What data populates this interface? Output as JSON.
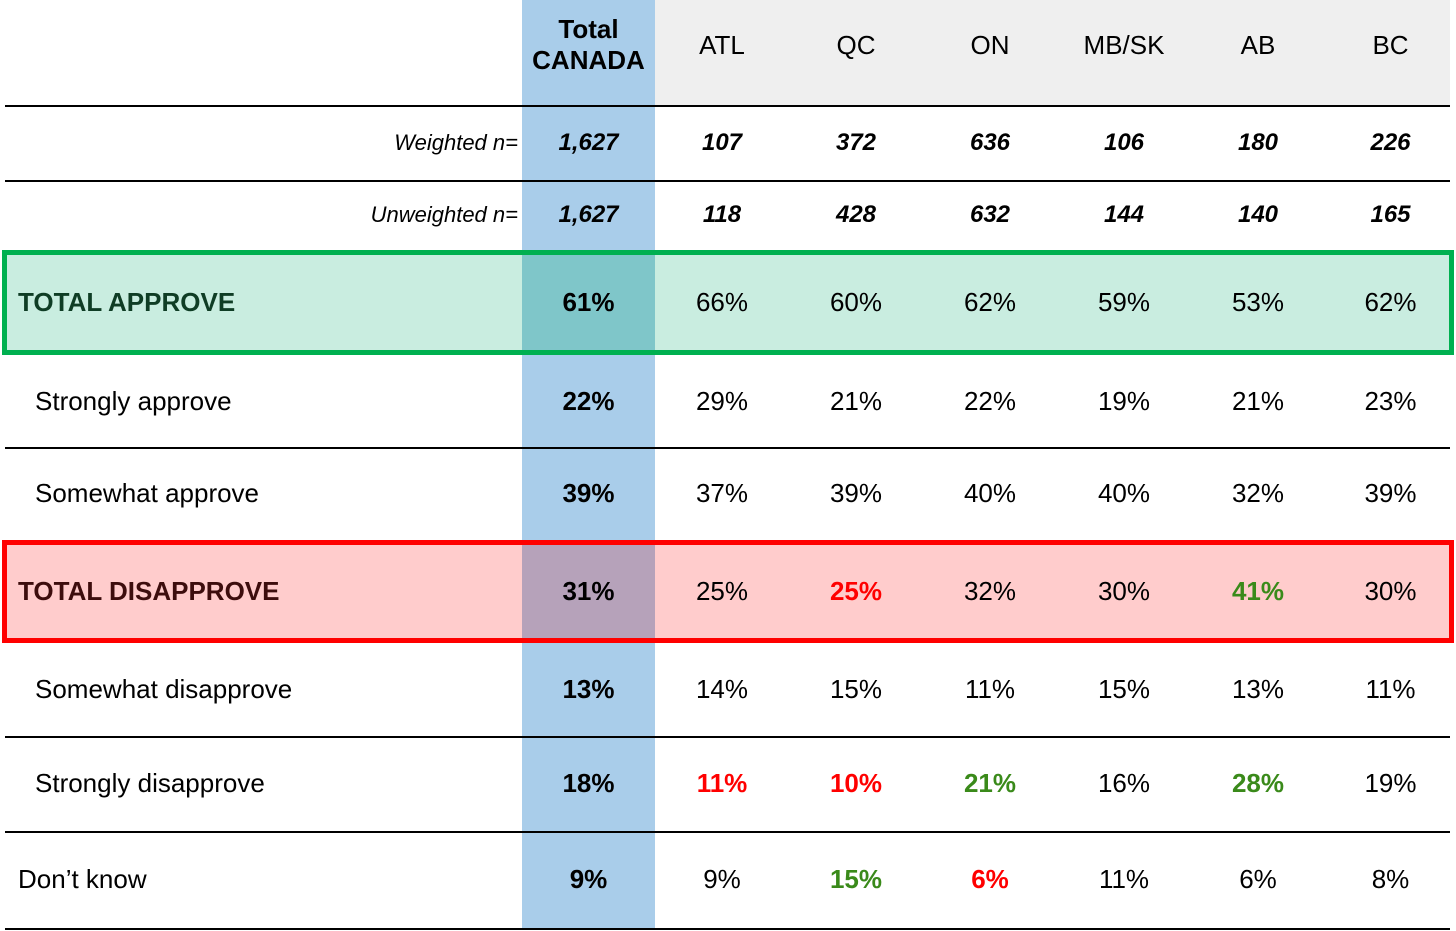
{
  "header": {
    "columns": [
      "Total CANADA",
      "ATL",
      "QC",
      "ON",
      "MB/SK",
      "AB",
      "BC"
    ]
  },
  "rows": [
    {
      "label": "Weighted n=",
      "cells": [
        "1,627",
        "107",
        "372",
        "636",
        "106",
        "180",
        "226"
      ]
    },
    {
      "label": "Unweighted n=",
      "cells": [
        "1,627",
        "118",
        "428",
        "632",
        "144",
        "140",
        "165"
      ]
    },
    {
      "label": "TOTAL APPROVE",
      "cells": [
        "61%",
        "66%",
        "60%",
        "62%",
        "59%",
        "53%",
        "62%"
      ]
    },
    {
      "label": "Strongly approve",
      "cells": [
        "22%",
        "29%",
        "21%",
        "22%",
        "19%",
        "21%",
        "23%"
      ]
    },
    {
      "label": "Somewhat approve",
      "cells": [
        "39%",
        "37%",
        "39%",
        "40%",
        "40%",
        "32%",
        "39%"
      ]
    },
    {
      "label": "TOTAL DISAPPROVE",
      "cells": [
        "31%",
        "25%",
        "25%",
        "32%",
        "30%",
        "41%",
        "30%"
      ],
      "cell_colors": [
        null,
        null,
        "#ff0000",
        null,
        null,
        "#3a8a1a",
        null
      ]
    },
    {
      "label": "Somewhat disapprove",
      "cells": [
        "13%",
        "14%",
        "15%",
        "11%",
        "15%",
        "13%",
        "11%"
      ]
    },
    {
      "label": "Strongly disapprove",
      "cells": [
        "18%",
        "11%",
        "10%",
        "21%",
        "16%",
        "28%",
        "19%"
      ],
      "cell_colors": [
        null,
        "#ff0000",
        "#ff0000",
        "#3a8a1a",
        null,
        "#3a8a1a",
        null
      ]
    },
    {
      "label": "Don’t know",
      "cells": [
        "9%",
        "9%",
        "15%",
        "6%",
        "11%",
        "6%",
        "8%"
      ],
      "cell_colors": [
        null,
        null,
        "#3a8a1a",
        "#ff0000",
        null,
        null,
        null
      ]
    }
  ]
}
